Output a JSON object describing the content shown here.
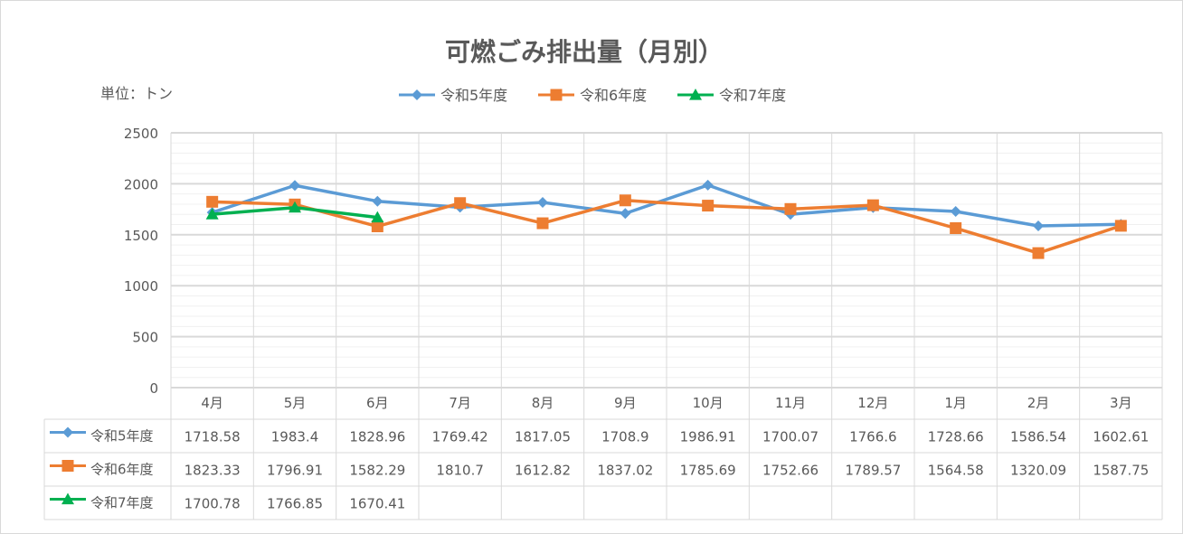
{
  "chart_data": {
    "type": "line",
    "title": "可燃ごみ排出量（月別）",
    "unit_label": "単位：トン",
    "categories": [
      "4月",
      "5月",
      "6月",
      "7月",
      "8月",
      "9月",
      "10月",
      "11月",
      "12月",
      "1月",
      "2月",
      "3月"
    ],
    "y_ticks": [
      "0",
      "500",
      "1000",
      "1500",
      "2000",
      "2500"
    ],
    "ylim": [
      0,
      2500
    ],
    "series": [
      {
        "name": "令和5年度",
        "color": "#5b9bd5",
        "marker": "diamond",
        "values": [
          1718.58,
          1983.4,
          1828.96,
          1769.42,
          1817.05,
          1708.9,
          1986.91,
          1700.07,
          1766.6,
          1728.66,
          1586.54,
          1602.61
        ],
        "labels": [
          "1718.58",
          "1983.4",
          "1828.96",
          "1769.42",
          "1817.05",
          "1708.9",
          "1986.91",
          "1700.07",
          "1766.6",
          "1728.66",
          "1586.54",
          "1602.61"
        ]
      },
      {
        "name": "令和6年度",
        "color": "#ed7d31",
        "marker": "square",
        "values": [
          1823.33,
          1796.91,
          1582.29,
          1810.7,
          1612.82,
          1837.02,
          1785.69,
          1752.66,
          1789.57,
          1564.58,
          1320.09,
          1587.75
        ],
        "labels": [
          "1823.33",
          "1796.91",
          "1582.29",
          "1810.7",
          "1612.82",
          "1837.02",
          "1785.69",
          "1752.66",
          "1789.57",
          "1564.58",
          "1320.09",
          "1587.75"
        ]
      },
      {
        "name": "令和7年度",
        "color": "#00b050",
        "marker": "triangle",
        "values": [
          1700.78,
          1766.85,
          1670.41,
          null,
          null,
          null,
          null,
          null,
          null,
          null,
          null,
          null
        ],
        "labels": [
          "1700.78",
          "1766.85",
          "1670.41",
          "",
          "",
          "",
          "",
          "",
          "",
          "",
          "",
          ""
        ]
      }
    ],
    "grid": true,
    "legend_position": "top",
    "data_table": true
  }
}
